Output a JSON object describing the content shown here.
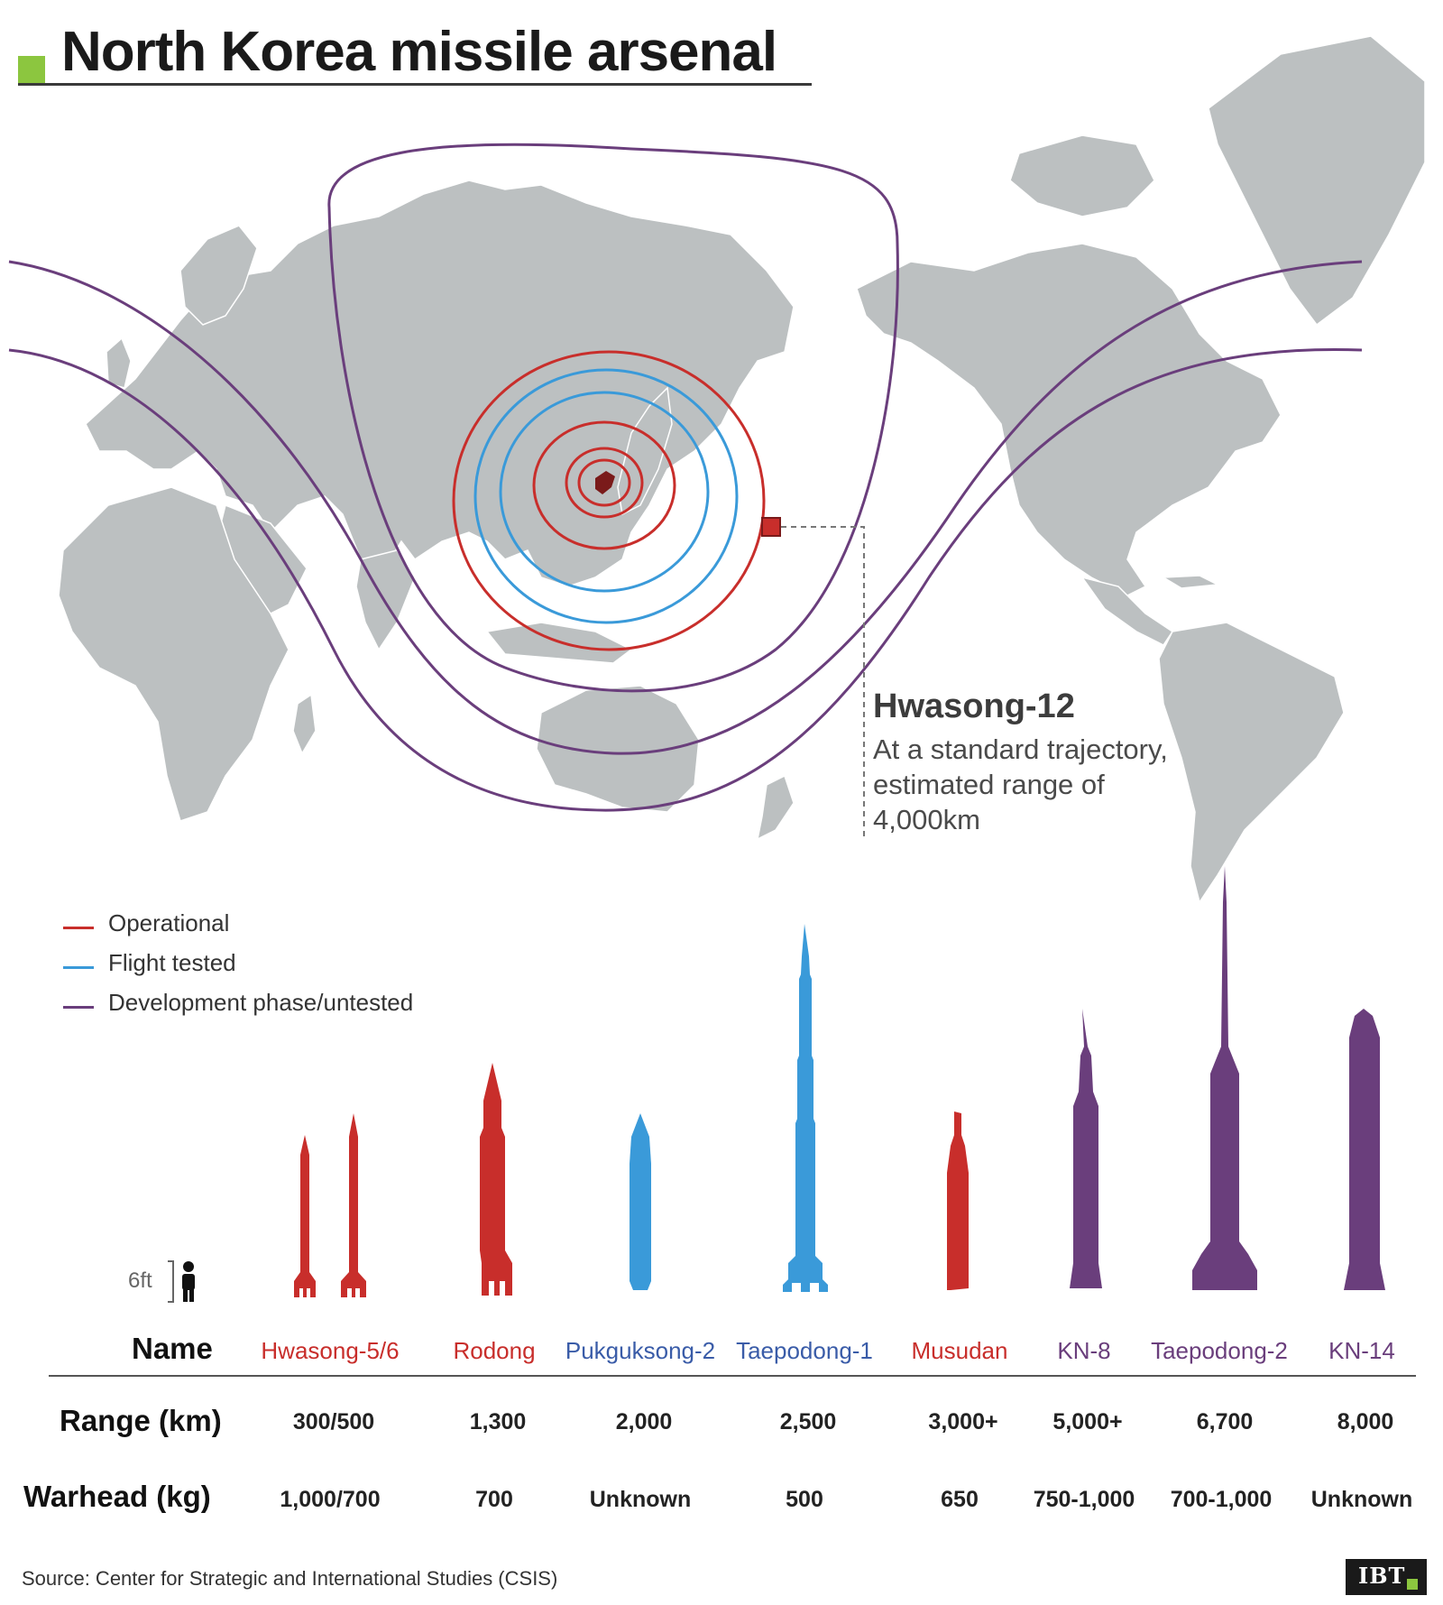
{
  "title": "North Korea missile arsenal",
  "colors": {
    "operational": "#c82e2b",
    "flight_tested": "#3a9ad9",
    "development": "#6a3e7c",
    "land": "#bcc0c1",
    "accent": "#8cc63f"
  },
  "callout": {
    "title": "Hwasong-12",
    "lines": [
      "At a standard trajectory,",
      "estimated range of",
      "4,000km"
    ]
  },
  "legend": [
    {
      "label": "Operational",
      "status": "operational"
    },
    {
      "label": "Flight tested",
      "status": "flight_tested"
    },
    {
      "label": "Development phase/untested",
      "status": "development"
    }
  ],
  "scale": {
    "label": "6ft",
    "icon": "person-icon"
  },
  "table": {
    "row_labels": {
      "name": "Name",
      "range": "Range (km)",
      "warhead": "Warhead (kg)"
    },
    "missiles": [
      {
        "name": "Hwasong-5/6",
        "range": "300/500",
        "warhead": "1,000/700",
        "status": "operational"
      },
      {
        "name": "Rodong",
        "range": "1,300",
        "warhead": "700",
        "status": "operational"
      },
      {
        "name": "Pukguksong-2",
        "range": "2,000",
        "warhead": "Unknown",
        "status": "flight_tested"
      },
      {
        "name": "Taepodong-1",
        "range": "2,500",
        "warhead": "500",
        "status": "flight_tested"
      },
      {
        "name": "Musudan",
        "range": "3,000+",
        "warhead": "650",
        "status": "operational"
      },
      {
        "name": "KN-8",
        "range": "5,000+",
        "warhead": "750-1,000",
        "status": "development"
      },
      {
        "name": "Taepodong-2",
        "range": "6,700",
        "warhead": "700-1,000",
        "status": "development"
      },
      {
        "name": "KN-14",
        "range": "8,000",
        "warhead": "Unknown",
        "status": "development"
      }
    ]
  },
  "source": "Source: Center for Strategic and International Studies (CSIS)",
  "logo": "IBT"
}
